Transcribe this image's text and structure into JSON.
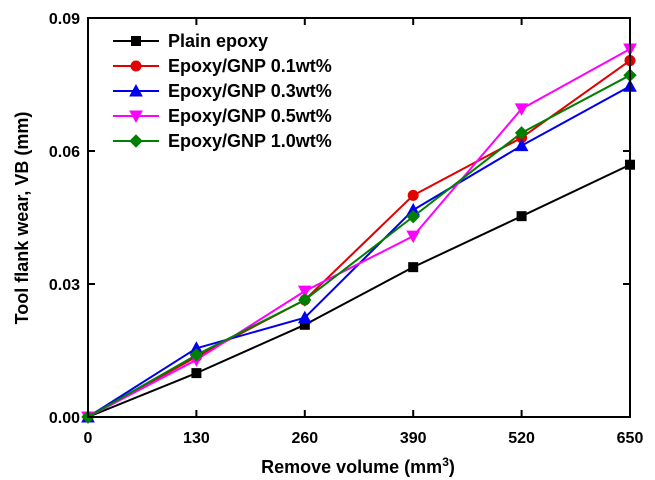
{
  "chart_data": {
    "type": "line",
    "title": "",
    "xlabel": "Remove volume (mm",
    "xlabel_sup": "3",
    "xlabel_tail": ")",
    "ylabel": "Tool flank wear, VB (mm)",
    "xlim": [
      0,
      650
    ],
    "ylim": [
      0,
      0.09
    ],
    "x_ticks": [
      0,
      130,
      260,
      390,
      520,
      650
    ],
    "y_ticks": [
      0,
      0.03,
      0.06,
      0.09
    ],
    "x_tick_labels": [
      "0",
      "130",
      "260",
      "390",
      "520",
      "650"
    ],
    "y_tick_labels": [
      "0.00",
      "0.03",
      "0.06",
      "0.09"
    ],
    "legend_position": "top-left",
    "grid": false,
    "x": [
      0,
      130,
      260,
      390,
      520,
      650
    ],
    "series": [
      {
        "name": "Plain epoxy",
        "color": "#000000",
        "marker": "square",
        "values": [
          0,
          0.0099,
          0.0208,
          0.0338,
          0.0453,
          0.0569
        ]
      },
      {
        "name": "Epoxy/GNP 0.1wt%",
        "color": "#e00000",
        "marker": "circle",
        "values": [
          0,
          0.0136,
          0.0264,
          0.05,
          0.063,
          0.0804
        ]
      },
      {
        "name": "Epoxy/GNP 0.3wt%",
        "color": "#0000ee",
        "marker": "triangle-up",
        "values": [
          0,
          0.0155,
          0.0224,
          0.0467,
          0.0612,
          0.0746
        ]
      },
      {
        "name": "Epoxy/GNP 0.5wt%",
        "color": "#ff00ff",
        "marker": "triangle-down",
        "values": [
          0,
          0.0129,
          0.0284,
          0.0408,
          0.0695,
          0.083
        ]
      },
      {
        "name": "Epoxy/GNP 1.0wt%",
        "color": "#008000",
        "marker": "diamond",
        "values": [
          0,
          0.014,
          0.0264,
          0.0452,
          0.0641,
          0.0771
        ]
      }
    ]
  }
}
